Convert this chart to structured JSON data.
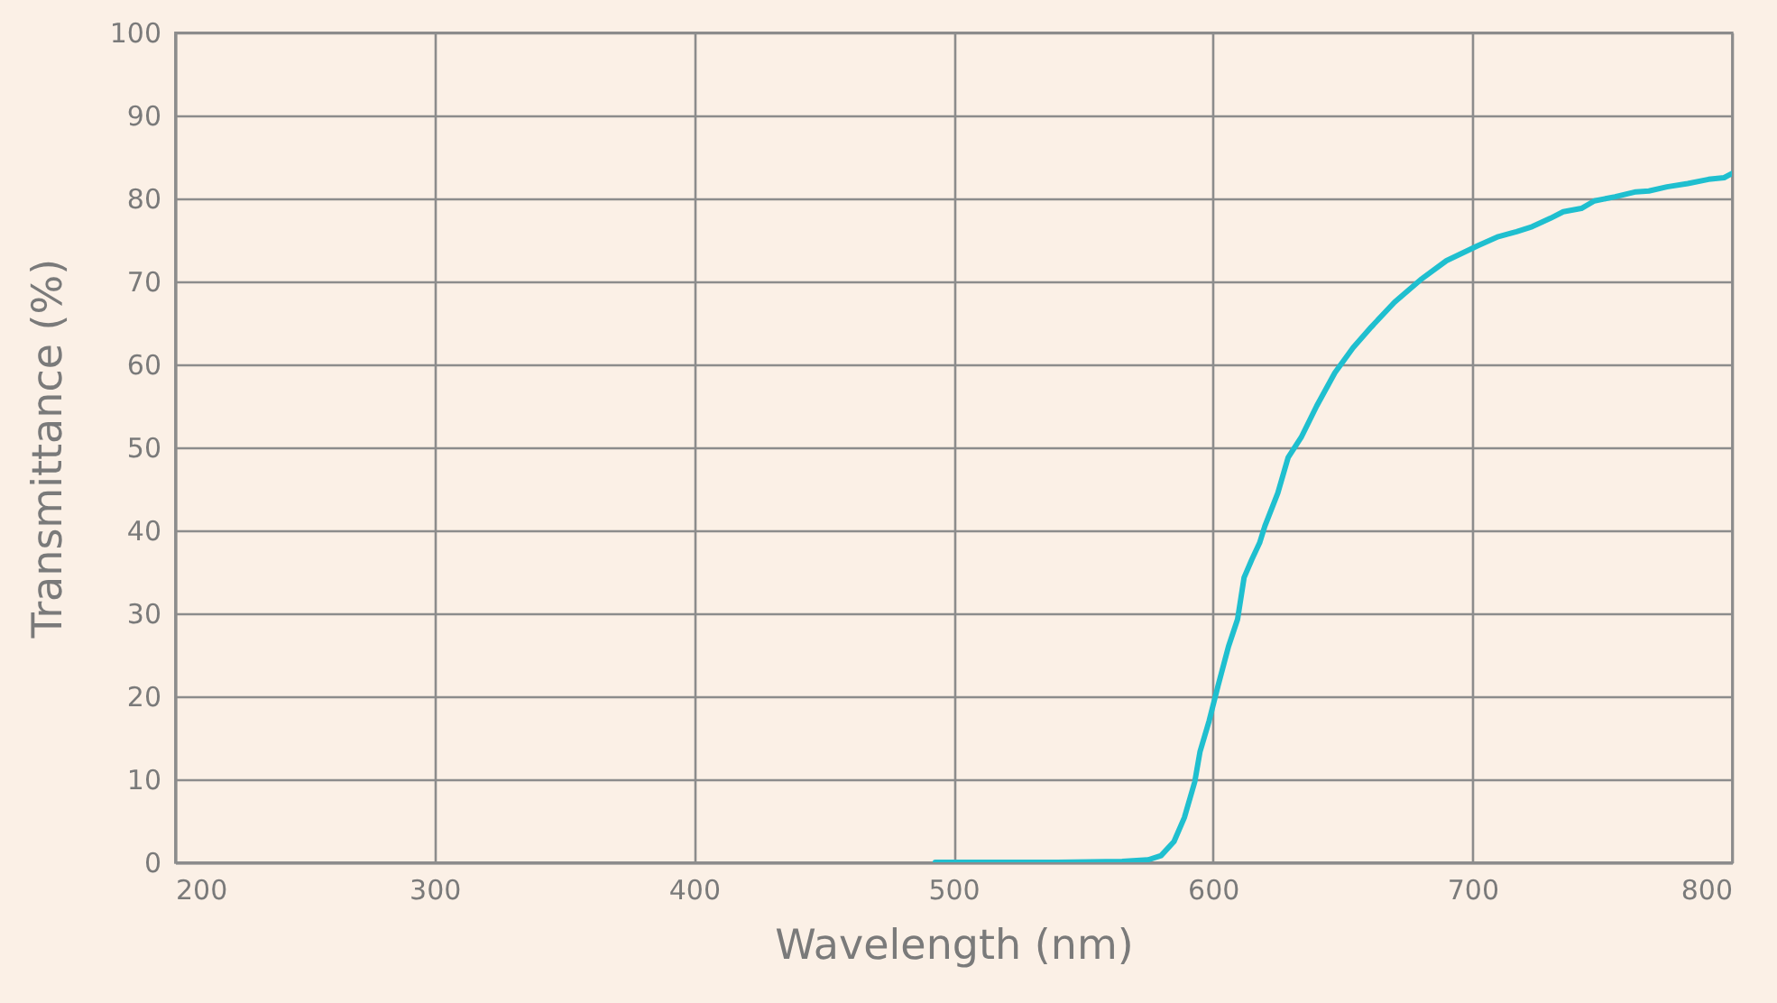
{
  "chart_data": {
    "type": "line",
    "xlabel": "Wavelength (nm)",
    "ylabel": "Transmittance (%)",
    "x": [
      493,
      540,
      565,
      575,
      580,
      585,
      589,
      593,
      595,
      598.5,
      602,
      606,
      609.5,
      612,
      615,
      618,
      620,
      625,
      629,
      634,
      640,
      647,
      654,
      661,
      670,
      680,
      690,
      702,
      710,
      717,
      723,
      730,
      735,
      742,
      747,
      755,
      763,
      768,
      775,
      783,
      791,
      797,
      800
    ],
    "series": [
      {
        "color": "#1fbfcf",
        "values": [
          0,
          0,
          0.1,
          0.3,
          0.8,
          2.5,
          5.4,
          9.7,
          13.3,
          17,
          21.3,
          26,
          29.3,
          34.3,
          36.5,
          38.5,
          40.5,
          44.5,
          48.8,
          51.2,
          55,
          59,
          62,
          64.5,
          67.5,
          70.2,
          72.5,
          74.3,
          75.4,
          76,
          76.6,
          77.6,
          78.4,
          78.8,
          79.7,
          80.2,
          80.8,
          80.9,
          81.4,
          81.8,
          82.3,
          82.5,
          83
        ]
      }
    ],
    "xlim": [
      200,
      800
    ],
    "ylim": [
      0,
      100
    ],
    "xticks": [
      200,
      300,
      400,
      500,
      600,
      700,
      800
    ],
    "yticks": [
      0,
      10,
      20,
      30,
      40,
      50,
      60,
      70,
      80,
      90,
      100
    ],
    "grid": true,
    "line_style": "solid"
  }
}
